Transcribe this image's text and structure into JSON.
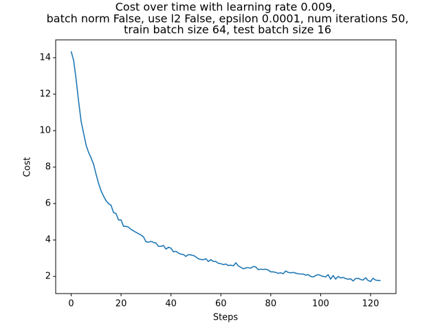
{
  "chart_data": {
    "type": "line",
    "title": [
      "Cost over time with learning rate 0.009,",
      "batch norm False, use l2 False, epsilon 0.0001, num iterations 50,",
      "train batch size 64, test batch size 16"
    ],
    "x_label": "Steps",
    "y_label": "Cost",
    "x": [
      0,
      1,
      2,
      3,
      4,
      5,
      6,
      7,
      8,
      9,
      10,
      11,
      12,
      13,
      14,
      15,
      16,
      17,
      18,
      19,
      20,
      21,
      22,
      23,
      24,
      25,
      26,
      27,
      28,
      29,
      30,
      31,
      32,
      33,
      34,
      35,
      36,
      37,
      38,
      39,
      40,
      41,
      42,
      43,
      44,
      45,
      46,
      47,
      48,
      49,
      50,
      51,
      52,
      53,
      54,
      55,
      56,
      57,
      58,
      59,
      60,
      61,
      62,
      63,
      64,
      65,
      66,
      67,
      68,
      69,
      70,
      71,
      72,
      73,
      74,
      75,
      76,
      77,
      78,
      79,
      80,
      81,
      82,
      83,
      84,
      85,
      86,
      87,
      88,
      89,
      90,
      91,
      92,
      93,
      94,
      95,
      96,
      97,
      98,
      99,
      100,
      101,
      102,
      103,
      104,
      105,
      106,
      107,
      108,
      109,
      110,
      111,
      112,
      113,
      114,
      115,
      116,
      117,
      118,
      119,
      120,
      121,
      122,
      123,
      124
    ],
    "series": [
      {
        "name": "Cost",
        "color": "#1f77b4",
        "values": [
          14.35,
          13.85,
          12.8,
          11.6,
          10.5,
          9.85,
          9.2,
          8.8,
          8.5,
          8.15,
          7.6,
          7.1,
          6.7,
          6.4,
          6.15,
          6.0,
          5.9,
          5.5,
          5.45,
          5.1,
          5.1,
          4.75,
          4.75,
          4.7,
          4.58,
          4.5,
          4.42,
          4.35,
          4.27,
          4.17,
          3.9,
          3.88,
          3.92,
          3.87,
          3.83,
          3.65,
          3.65,
          3.7,
          3.5,
          3.6,
          3.55,
          3.35,
          3.38,
          3.28,
          3.22,
          3.2,
          3.1,
          3.2,
          3.18,
          3.15,
          3.07,
          2.97,
          2.93,
          2.92,
          2.97,
          2.82,
          2.92,
          2.82,
          2.82,
          2.72,
          2.7,
          2.65,
          2.68,
          2.6,
          2.62,
          2.58,
          2.75,
          2.58,
          2.5,
          2.42,
          2.47,
          2.48,
          2.45,
          2.55,
          2.52,
          2.37,
          2.4,
          2.38,
          2.4,
          2.35,
          2.25,
          2.25,
          2.22,
          2.17,
          2.2,
          2.15,
          2.3,
          2.22,
          2.2,
          2.22,
          2.18,
          2.15,
          2.13,
          2.13,
          2.07,
          2.1,
          2.0,
          1.97,
          2.05,
          2.1,
          2.05,
          2.0,
          1.97,
          2.1,
          1.85,
          2.05,
          1.85,
          2.0,
          1.92,
          1.95,
          1.88,
          1.85,
          1.87,
          1.75,
          1.88,
          1.9,
          1.83,
          1.8,
          1.93,
          1.78,
          1.72,
          1.9,
          1.8,
          1.78,
          1.78
        ]
      }
    ],
    "xlim": [
      -6.2,
      130.2
    ],
    "ylim": [
      1.06,
      14.98
    ],
    "xticks": [
      0,
      20,
      40,
      60,
      80,
      100,
      120
    ],
    "yticks": [
      2,
      4,
      6,
      8,
      10,
      12,
      14
    ]
  }
}
